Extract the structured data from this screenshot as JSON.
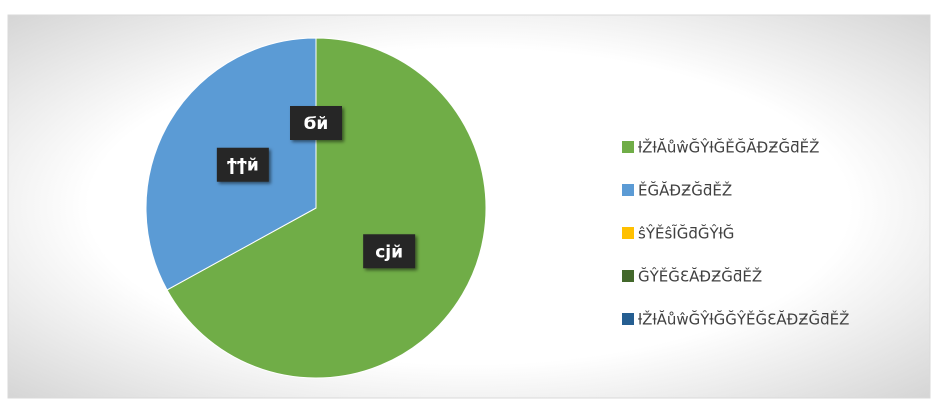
{
  "chart_data": {
    "type": "pie",
    "categories": [
      "ƚŽƚĂůŵĞŶƚĞĚĞĂĐƵĞƌĚŽ",
      "ĚĞĂĐƵĞƌĚŽ",
      "ŝŶĚŝĨĞƌĞŶƚĞ",
      "ĞŶĚĞƐĂĐƵĞƌĚŽ",
      "ƚŽƚĂůŵĞŶƚĞĞŶĚĞƐĂĐƵĞƌĚŽ"
    ],
    "values": [
      67,
      33,
      0,
      0,
      0
    ],
    "value_labels": [
      "ϲϳй",
      "ϯϯй",
      "Ϭй",
      null,
      null
    ],
    "colors": [
      "#70ad47",
      "#5b9bd5",
      "#ffc000",
      "#43682b",
      "#255e91"
    ],
    "legend": "right"
  }
}
